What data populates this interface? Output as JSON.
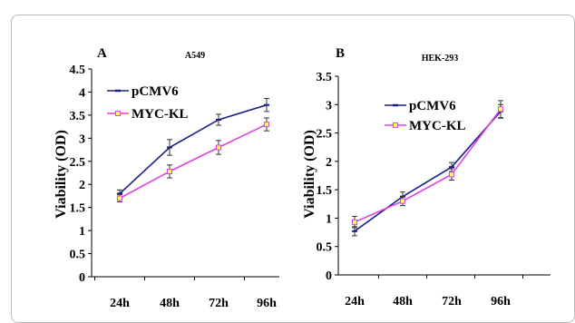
{
  "chart_data": [
    {
      "type": "line",
      "panel_label": "A",
      "title": "A549",
      "ylabel": "Viability (OD)",
      "xlabel": "",
      "categories": [
        "24h",
        "48h",
        "72h",
        "96h"
      ],
      "ylim": [
        0,
        4.5
      ],
      "yticks": [
        "0",
        "0.5",
        "1",
        "1.5",
        "2",
        "2.5",
        "3",
        "3.5",
        "4",
        "4.5"
      ],
      "grid": false,
      "legend_position": "top-left",
      "series": [
        {
          "name": "pCMV6",
          "values": [
            1.8,
            2.8,
            3.4,
            3.72
          ],
          "errors": [
            0.08,
            0.17,
            0.12,
            0.14
          ],
          "color": "#1a1f8c",
          "marker": "dash"
        },
        {
          "name": "MYC-KL",
          "values": [
            1.7,
            2.28,
            2.8,
            3.3
          ],
          "errors": [
            0.08,
            0.14,
            0.15,
            0.14
          ],
          "color": "#e040e0",
          "marker": "square"
        }
      ]
    },
    {
      "type": "line",
      "panel_label": "B",
      "title": "HEK-293",
      "ylabel": "Viability (OD)",
      "xlabel": "",
      "categories": [
        "24h",
        "48h",
        "72h",
        "96h"
      ],
      "ylim": [
        0,
        3.5
      ],
      "yticks": [
        "0",
        "0.5",
        "1",
        "1.5",
        "2",
        "2.5",
        "3",
        "3.5"
      ],
      "grid": false,
      "legend_position": "top-left",
      "series": [
        {
          "name": "pCMV6",
          "values": [
            0.77,
            1.38,
            1.9,
            2.88
          ],
          "errors": [
            0.08,
            0.08,
            0.08,
            0.12
          ],
          "color": "#1a1f8c",
          "marker": "dash"
        },
        {
          "name": "MYC-KL",
          "values": [
            0.93,
            1.3,
            1.77,
            2.92
          ],
          "errors": [
            0.1,
            0.08,
            0.1,
            0.15
          ],
          "color": "#e040e0",
          "marker": "square"
        }
      ]
    }
  ]
}
